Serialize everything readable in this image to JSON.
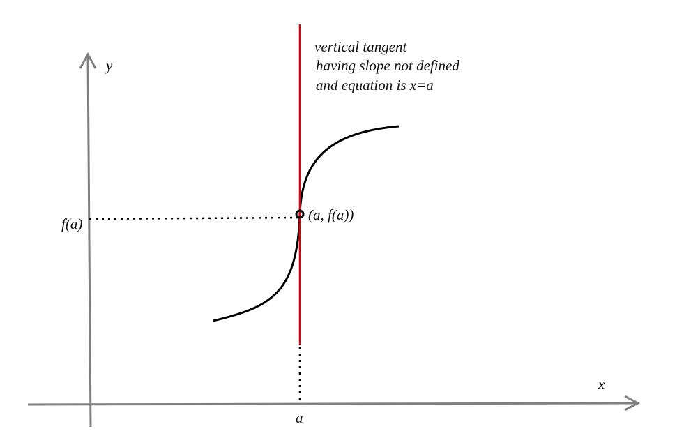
{
  "axes": {
    "x_label": "x",
    "y_label": "y",
    "x_point_label": "a",
    "y_point_label": "f(a)"
  },
  "point": {
    "label": "(a, f(a))"
  },
  "annotation": {
    "lines": [
      "vertical tangent",
      "having slope not defined",
      "and equation is x=a"
    ]
  }
}
